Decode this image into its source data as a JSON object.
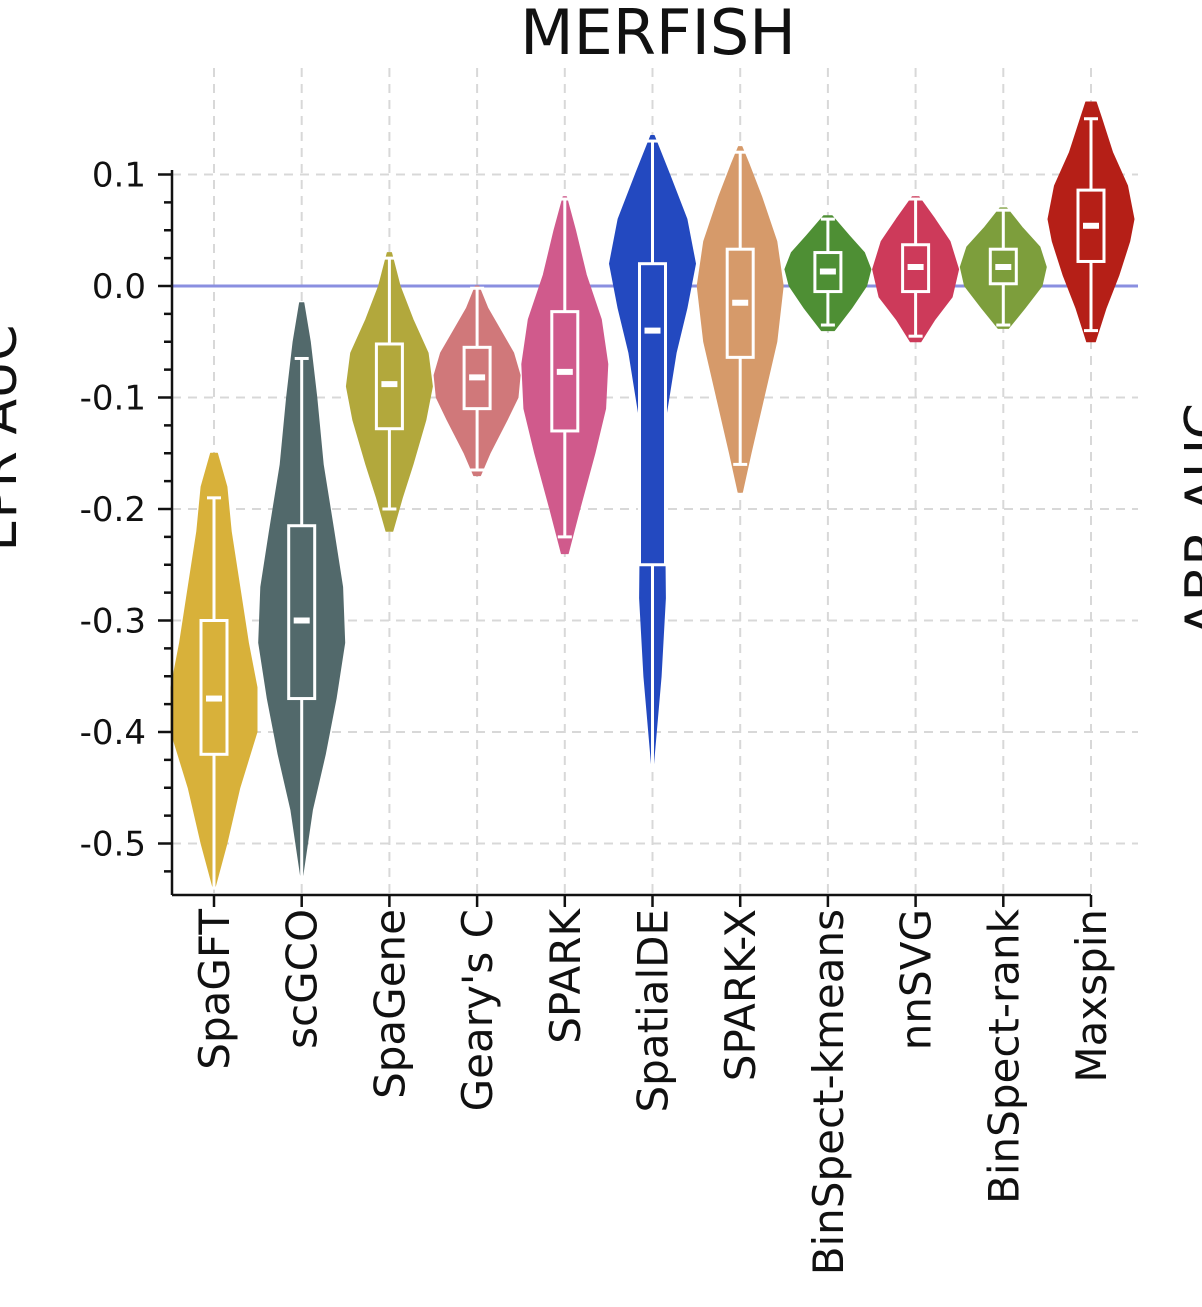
{
  "chart_data": {
    "type": "violin",
    "title": "MERFISH",
    "xlabel": "",
    "ylabel": "EPR AUC",
    "right_label": "ABR AUC",
    "ylim": [
      -0.55,
      0.17
    ],
    "yticks": [
      0.1,
      0.0,
      -0.1,
      -0.2,
      -0.3,
      -0.4,
      -0.5
    ],
    "ytick_labels": [
      "0.1",
      "0.0",
      "-0.1",
      "-0.2",
      "-0.3",
      "-0.4",
      "-0.5"
    ],
    "grid": true,
    "reference_line": {
      "y": 0.0,
      "color": "#8a8fe0"
    },
    "categories": [
      "SpaGFT",
      "scGCO",
      "SpaGene",
      "Geary's C",
      "SPARK",
      "SpatialDE",
      "SPARK-X",
      "BinSpect-kmeans",
      "nnSVG",
      "BinSpect-rank",
      "Maxspin"
    ],
    "series": [
      {
        "name": "SpaGFT",
        "color": "#d8b13a",
        "min": -0.54,
        "max": -0.15,
        "q1": -0.42,
        "median": -0.37,
        "q3": -0.3,
        "whisker_low": -0.54,
        "whisker_high": -0.19,
        "density": [
          [
            -0.54,
            0.02
          ],
          [
            -0.5,
            0.3
          ],
          [
            -0.45,
            0.6
          ],
          [
            -0.4,
            1.0
          ],
          [
            -0.36,
            1.0
          ],
          [
            -0.32,
            0.8
          ],
          [
            -0.27,
            0.6
          ],
          [
            -0.22,
            0.4
          ],
          [
            -0.18,
            0.3
          ],
          [
            -0.15,
            0.08
          ]
        ]
      },
      {
        "name": "scGCO",
        "color": "#52696b",
        "min": -0.53,
        "max": -0.015,
        "q1": -0.37,
        "median": -0.3,
        "q3": -0.215,
        "whisker_low": -0.53,
        "whisker_high": -0.065,
        "density": [
          [
            -0.53,
            0.02
          ],
          [
            -0.47,
            0.25
          ],
          [
            -0.42,
            0.55
          ],
          [
            -0.37,
            0.8
          ],
          [
            -0.32,
            1.0
          ],
          [
            -0.27,
            0.95
          ],
          [
            -0.22,
            0.75
          ],
          [
            -0.16,
            0.5
          ],
          [
            -0.1,
            0.35
          ],
          [
            -0.05,
            0.2
          ],
          [
            -0.015,
            0.05
          ]
        ]
      },
      {
        "name": "SpaGene",
        "color": "#b2a83c",
        "min": -0.22,
        "max": 0.03,
        "q1": -0.128,
        "median": -0.088,
        "q3": -0.052,
        "whisker_low": -0.2,
        "whisker_high": 0.025,
        "density": [
          [
            -0.22,
            0.08
          ],
          [
            -0.19,
            0.3
          ],
          [
            -0.16,
            0.55
          ],
          [
            -0.12,
            0.85
          ],
          [
            -0.09,
            1.0
          ],
          [
            -0.06,
            0.9
          ],
          [
            -0.03,
            0.55
          ],
          [
            0.0,
            0.25
          ],
          [
            0.03,
            0.05
          ]
        ]
      },
      {
        "name": "Geary's C",
        "color": "#d0787a",
        "min": -0.17,
        "max": 0.0,
        "q1": -0.11,
        "median": -0.082,
        "q3": -0.055,
        "whisker_low": -0.165,
        "whisker_high": -0.002,
        "density": [
          [
            -0.17,
            0.08
          ],
          [
            -0.15,
            0.3
          ],
          [
            -0.12,
            0.7
          ],
          [
            -0.1,
            0.95
          ],
          [
            -0.08,
            1.0
          ],
          [
            -0.06,
            0.85
          ],
          [
            -0.04,
            0.55
          ],
          [
            -0.02,
            0.25
          ],
          [
            0.0,
            0.04
          ]
        ]
      },
      {
        "name": "SPARK",
        "color": "#d05a8c",
        "min": -0.24,
        "max": 0.08,
        "q1": -0.13,
        "median": -0.077,
        "q3": -0.023,
        "whisker_low": -0.225,
        "whisker_high": 0.078,
        "density": [
          [
            -0.24,
            0.08
          ],
          [
            -0.2,
            0.35
          ],
          [
            -0.15,
            0.7
          ],
          [
            -0.11,
            0.95
          ],
          [
            -0.07,
            1.0
          ],
          [
            -0.03,
            0.85
          ],
          [
            0.01,
            0.5
          ],
          [
            0.05,
            0.25
          ],
          [
            0.08,
            0.04
          ]
        ]
      },
      {
        "name": "SpatialDE",
        "color": "#2349c0",
        "min": -0.43,
        "max": 0.135,
        "q1": -0.25,
        "median": -0.04,
        "q3": 0.02,
        "whisker_low": -0.43,
        "whisker_high": 0.13,
        "density": [
          [
            -0.43,
            0.02
          ],
          [
            -0.35,
            0.2
          ],
          [
            -0.28,
            0.3
          ],
          [
            -0.2,
            0.28
          ],
          [
            -0.12,
            0.3
          ],
          [
            -0.06,
            0.55
          ],
          [
            -0.02,
            0.8
          ],
          [
            0.02,
            1.0
          ],
          [
            0.06,
            0.8
          ],
          [
            0.1,
            0.4
          ],
          [
            0.135,
            0.04
          ]
        ]
      },
      {
        "name": "SPARK-X",
        "color": "#d69a6a",
        "min": -0.185,
        "max": 0.125,
        "q1": -0.064,
        "median": -0.015,
        "q3": 0.033,
        "whisker_low": -0.16,
        "whisker_high": 0.12,
        "density": [
          [
            -0.185,
            0.05
          ],
          [
            -0.15,
            0.25
          ],
          [
            -0.1,
            0.55
          ],
          [
            -0.05,
            0.85
          ],
          [
            0.0,
            1.0
          ],
          [
            0.04,
            0.85
          ],
          [
            0.08,
            0.5
          ],
          [
            0.11,
            0.2
          ],
          [
            0.125,
            0.04
          ]
        ]
      },
      {
        "name": "BinSpect-kmeans",
        "color": "#4e8f34",
        "min": -0.04,
        "max": 0.063,
        "q1": -0.005,
        "median": 0.013,
        "q3": 0.03,
        "whisker_low": -0.035,
        "whisker_high": 0.06,
        "density": [
          [
            -0.04,
            0.15
          ],
          [
            -0.02,
            0.55
          ],
          [
            0.0,
            0.9
          ],
          [
            0.015,
            1.0
          ],
          [
            0.03,
            0.85
          ],
          [
            0.045,
            0.5
          ],
          [
            0.063,
            0.1
          ]
        ]
      },
      {
        "name": "nnSVG",
        "color": "#cd3a5a",
        "min": -0.05,
        "max": 0.08,
        "q1": -0.005,
        "median": 0.017,
        "q3": 0.037,
        "whisker_low": -0.045,
        "whisker_high": 0.078,
        "density": [
          [
            -0.05,
            0.12
          ],
          [
            -0.03,
            0.45
          ],
          [
            -0.01,
            0.85
          ],
          [
            0.015,
            1.0
          ],
          [
            0.04,
            0.8
          ],
          [
            0.06,
            0.45
          ],
          [
            0.08,
            0.08
          ]
        ]
      },
      {
        "name": "BinSpect-rank",
        "color": "#7d9e3c",
        "min": -0.038,
        "max": 0.07,
        "q1": 0.002,
        "median": 0.017,
        "q3": 0.033,
        "whisker_low": -0.035,
        "whisker_high": 0.068,
        "density": [
          [
            -0.038,
            0.12
          ],
          [
            -0.02,
            0.5
          ],
          [
            0.0,
            0.9
          ],
          [
            0.017,
            1.0
          ],
          [
            0.035,
            0.85
          ],
          [
            0.052,
            0.45
          ],
          [
            0.07,
            0.08
          ]
        ]
      },
      {
        "name": "Maxspin",
        "color": "#b51f17",
        "min": -0.05,
        "max": 0.165,
        "q1": 0.022,
        "median": 0.054,
        "q3": 0.086,
        "whisker_low": -0.04,
        "whisker_high": 0.15,
        "density": [
          [
            -0.05,
            0.1
          ],
          [
            -0.02,
            0.35
          ],
          [
            0.01,
            0.65
          ],
          [
            0.04,
            0.9
          ],
          [
            0.06,
            1.0
          ],
          [
            0.09,
            0.85
          ],
          [
            0.12,
            0.5
          ],
          [
            0.15,
            0.25
          ],
          [
            0.165,
            0.12
          ]
        ]
      }
    ]
  }
}
